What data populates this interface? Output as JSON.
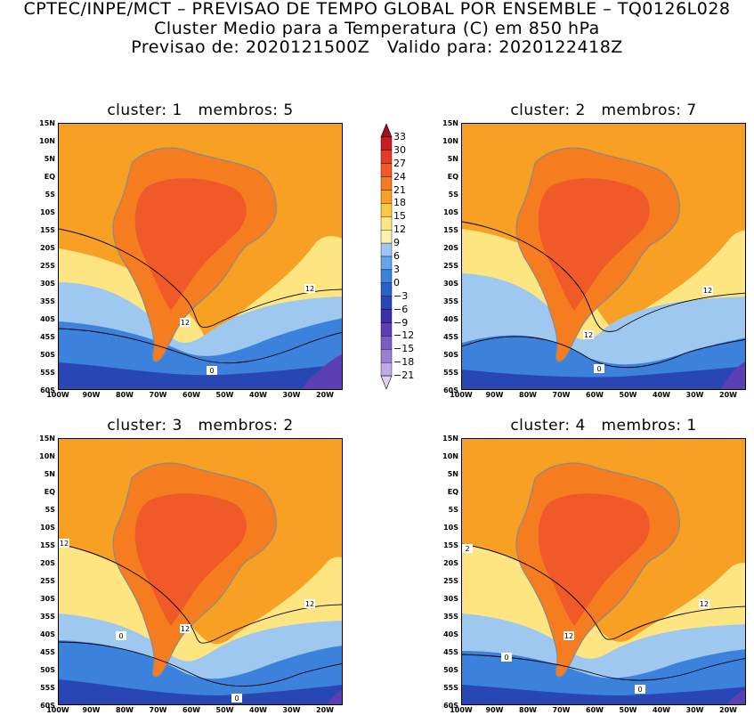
{
  "header": {
    "line1": "CPTEC/INPE/MCT – PREVISAO DE TEMPO GLOBAL POR ENSEMBLE – TQ0126L028",
    "line2": "Cluster Medio para a Temperatura (C) em 850 hPa",
    "line3": "Previsao de: 2020121500Z   Valido para: 2020122418Z"
  },
  "panels": [
    {
      "title": "cluster: 1   membros: 5",
      "contour_labels": [
        "12",
        "12",
        "0"
      ]
    },
    {
      "title": "cluster: 2   membros: 7",
      "contour_labels": [
        "12",
        "12",
        "0"
      ]
    },
    {
      "title": "cluster: 3   membros: 2",
      "contour_labels": [
        "12",
        "12",
        "12",
        "0",
        "0"
      ]
    },
    {
      "title": "cluster: 4   membros: 1",
      "contour_labels": [
        "2",
        "12",
        "12",
        "0",
        "0"
      ]
    }
  ],
  "axes": {
    "lat_labels": [
      "15N",
      "10N",
      "5N",
      "EQ",
      "5S",
      "10S",
      "15S",
      "20S",
      "25S",
      "30S",
      "35S",
      "40S",
      "45S",
      "50S",
      "55S",
      "60S"
    ],
    "lon_labels": [
      "100W",
      "90W",
      "80W",
      "70W",
      "60W",
      "50W",
      "40W",
      "30W",
      "20W"
    ]
  },
  "colorbar": {
    "labels": [
      "33",
      "30",
      "27",
      "24",
      "21",
      "18",
      "15",
      "12",
      "9",
      "6",
      "3",
      "0",
      "−3",
      "−6",
      "−9",
      "−12",
      "−15",
      "−18",
      "−21"
    ],
    "colors": [
      "#a0101a",
      "#c81e1e",
      "#e03c28",
      "#f05a28",
      "#f57d20",
      "#f7a024",
      "#fbc840",
      "#fde682",
      "#fdf1b0",
      "#9ec8f0",
      "#64a4ea",
      "#3c82dc",
      "#2862c8",
      "#2846b4",
      "#3c30a8",
      "#5a40b4",
      "#7a5cc4",
      "#9a80d4",
      "#beaae6",
      "#ddd0f2"
    ]
  },
  "colors": {
    "warm_orange": "#f7a024",
    "hot_orange": "#f05a28",
    "pale_yellow": "#fde682",
    "light_blue": "#9ec8f0",
    "blue": "#3c82dc",
    "deep_blue": "#2846b4",
    "violet": "#5a40b4",
    "coast": "#8a8a8a"
  }
}
